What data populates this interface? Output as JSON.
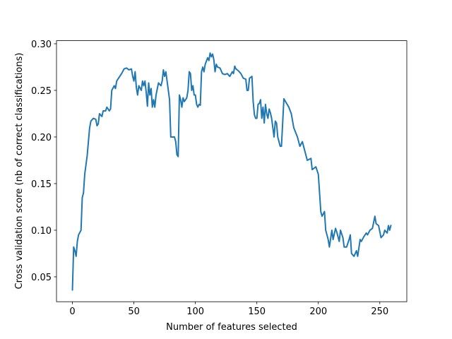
{
  "chart_data": {
    "type": "line",
    "xlabel": "Number of features selected",
    "ylabel": "Cross validation score (nb of correct classifications)",
    "color": "#1f77b4",
    "xlim": [
      -12.95,
      271.95
    ],
    "ylim": [
      0.0233,
      0.3033
    ],
    "xticks": [
      0,
      50,
      100,
      150,
      200,
      250
    ],
    "yticks": [
      0.05,
      {
        "value": 0.1,
        "label": "0.10"
      },
      0.15,
      {
        "value": 0.2,
        "label": "0.20"
      },
      0.25,
      {
        "value": 0.3,
        "label": "0.30"
      }
    ],
    "x": [
      0,
      1,
      2,
      3,
      4,
      5,
      7,
      8,
      9,
      10,
      12,
      14,
      15,
      17,
      19,
      20,
      21,
      22,
      24,
      25,
      27,
      28,
      30,
      31,
      32,
      34,
      35,
      36,
      38,
      40,
      42,
      44,
      46,
      48,
      49,
      50,
      51,
      52,
      53,
      54,
      56,
      57,
      58,
      59,
      60,
      61,
      62,
      63,
      64,
      65,
      66,
      67,
      68,
      70,
      72,
      73,
      74,
      75,
      76,
      77,
      78,
      79,
      80,
      81,
      83,
      84,
      85,
      86,
      87,
      88,
      89,
      90,
      91,
      92,
      93,
      94,
      95,
      96,
      97,
      98,
      99,
      100,
      101,
      102,
      103,
      104,
      105,
      106,
      107,
      108,
      110,
      111,
      112,
      113,
      114,
      115,
      116,
      117,
      118,
      120,
      122,
      124,
      126,
      128,
      130,
      131,
      132,
      133,
      135,
      137,
      139,
      141,
      142,
      143,
      144,
      146,
      147,
      148,
      149,
      150,
      151,
      152,
      153,
      154,
      155,
      156,
      157,
      158,
      159,
      160,
      161,
      162,
      163,
      164,
      165,
      166,
      167,
      168,
      169,
      170,
      172,
      176,
      178,
      180,
      183,
      185,
      187,
      189,
      191,
      194,
      195,
      198,
      200,
      202,
      203,
      205,
      206,
      208,
      209,
      211,
      212,
      214,
      215,
      217,
      218,
      220,
      221,
      223,
      225,
      226,
      227,
      229,
      231,
      232,
      234,
      235,
      237,
      239,
      240,
      242,
      244,
      246,
      247,
      249,
      251,
      253,
      254,
      256,
      257,
      258,
      259
    ],
    "values": [
      0.036,
      0.082,
      0.078,
      0.072,
      0.088,
      0.095,
      0.1,
      0.135,
      0.14,
      0.16,
      0.18,
      0.21,
      0.217,
      0.22,
      0.219,
      0.212,
      0.214,
      0.225,
      0.222,
      0.228,
      0.228,
      0.232,
      0.228,
      0.23,
      0.25,
      0.255,
      0.252,
      0.26,
      0.264,
      0.268,
      0.273,
      0.274,
      0.272,
      0.273,
      0.265,
      0.26,
      0.27,
      0.253,
      0.245,
      0.255,
      0.25,
      0.26,
      0.255,
      0.26,
      0.248,
      0.233,
      0.258,
      0.245,
      0.252,
      0.232,
      0.24,
      0.232,
      0.245,
      0.258,
      0.255,
      0.26,
      0.272,
      0.265,
      0.27,
      0.26,
      0.25,
      0.24,
      0.2,
      0.2,
      0.2,
      0.195,
      0.181,
      0.179,
      0.245,
      0.24,
      0.232,
      0.242,
      0.238,
      0.24,
      0.242,
      0.25,
      0.27,
      0.268,
      0.25,
      0.255,
      0.245,
      0.245,
      0.235,
      0.232,
      0.235,
      0.234,
      0.27,
      0.275,
      0.27,
      0.278,
      0.285,
      0.282,
      0.29,
      0.286,
      0.289,
      0.283,
      0.27,
      0.278,
      0.275,
      0.274,
      0.268,
      0.267,
      0.268,
      0.265,
      0.27,
      0.268,
      0.276,
      0.273,
      0.271,
      0.268,
      0.263,
      0.262,
      0.25,
      0.25,
      0.263,
      0.265,
      0.238,
      0.224,
      0.22,
      0.22,
      0.235,
      0.236,
      0.24,
      0.22,
      0.232,
      0.215,
      0.235,
      0.225,
      0.22,
      0.23,
      0.226,
      0.22,
      0.21,
      0.2,
      0.217,
      0.215,
      0.2,
      0.195,
      0.19,
      0.19,
      0.241,
      0.232,
      0.225,
      0.21,
      0.2,
      0.19,
      0.195,
      0.185,
      0.175,
      0.177,
      0.165,
      0.168,
      0.16,
      0.12,
      0.115,
      0.12,
      0.1,
      0.09,
      0.082,
      0.1,
      0.09,
      0.102,
      0.098,
      0.088,
      0.1,
      0.092,
      0.082,
      0.082,
      0.09,
      0.095,
      0.075,
      0.072,
      0.078,
      0.072,
      0.09,
      0.088,
      0.093,
      0.097,
      0.095,
      0.1,
      0.102,
      0.115,
      0.107,
      0.105,
      0.092,
      0.095,
      0.1,
      0.097,
      0.105,
      0.1,
      0.105
    ]
  }
}
